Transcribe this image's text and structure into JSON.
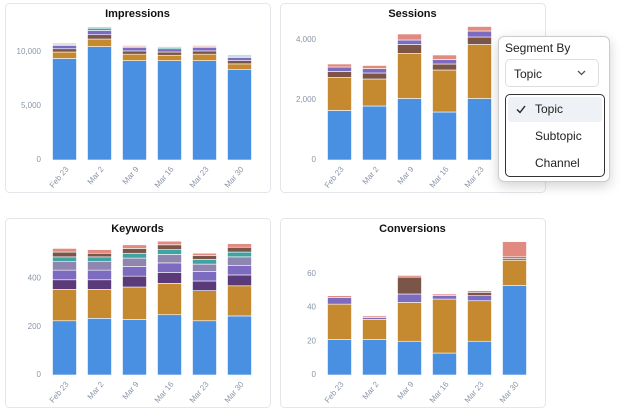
{
  "chart_data": [
    {
      "type": "bar",
      "stacked": true,
      "title": "Impressions",
      "categories": [
        "Feb 23",
        "Mar 2",
        "Mar 9",
        "Mar 16",
        "Mar 23",
        "Mar 30"
      ],
      "series": [
        {
          "color": "#4a90e2",
          "values": [
            9400,
            10500,
            9200,
            9200,
            9200,
            8400
          ]
        },
        {
          "color": "#c58a30",
          "values": [
            600,
            700,
            600,
            500,
            600,
            500
          ]
        },
        {
          "color": "#7a5548",
          "values": [
            300,
            400,
            300,
            300,
            300,
            300
          ]
        },
        {
          "color": "#7c6bbf",
          "values": [
            300,
            400,
            300,
            300,
            300,
            300
          ]
        },
        {
          "color": "#3fa3a3",
          "values": [
            100,
            200,
            100,
            100,
            100,
            100
          ]
        },
        {
          "color": "#e08a80",
          "values": [
            100,
            100,
            100,
            100,
            100,
            100
          ]
        }
      ],
      "ylim": [
        0,
        12500
      ],
      "yticks": [
        0,
        {
          "value": 5000,
          "label": "5,000"
        },
        {
          "value": 10000,
          "label": "10,000"
        }
      ]
    },
    {
      "type": "bar",
      "stacked": true,
      "title": "Sessions",
      "categories": [
        "Feb 23",
        "Mar 2",
        "Mar 9",
        "Mar 16",
        "Mar 23"
      ],
      "series": [
        {
          "color": "#4a90e2",
          "values": [
            1650,
            1800,
            2050,
            1600,
            2050
          ]
        },
        {
          "color": "#c58a30",
          "values": [
            1100,
            900,
            1500,
            1400,
            1800
          ]
        },
        {
          "color": "#7a5548",
          "values": [
            200,
            200,
            300,
            200,
            250
          ]
        },
        {
          "color": "#7c6bbf",
          "values": [
            150,
            150,
            150,
            150,
            200
          ]
        },
        {
          "color": "#e08a80",
          "values": [
            100,
            100,
            200,
            150,
            150
          ]
        }
      ],
      "ylim": [
        0,
        4500
      ],
      "yticks": [
        0,
        {
          "value": 2000,
          "label": "2,000"
        },
        {
          "value": 4000,
          "label": "4,000"
        }
      ]
    },
    {
      "type": "bar",
      "stacked": true,
      "title": "Keywords",
      "categories": [
        "Feb 23",
        "Mar 2",
        "Mar 9",
        "Mar 16",
        "Mar 23",
        "Mar 30"
      ],
      "series": [
        {
          "color": "#4a90e2",
          "values": [
            225,
            235,
            230,
            250,
            225,
            245
          ]
        },
        {
          "color": "#c58a30",
          "values": [
            130,
            120,
            135,
            130,
            125,
            125
          ]
        },
        {
          "color": "#5b3a7a",
          "values": [
            40,
            40,
            45,
            45,
            40,
            45
          ]
        },
        {
          "color": "#7c6bbf",
          "values": [
            40,
            40,
            40,
            40,
            40,
            40
          ]
        },
        {
          "color": "#8f86b0",
          "values": [
            35,
            35,
            35,
            35,
            30,
            35
          ]
        },
        {
          "color": "#3fa3a3",
          "values": [
            20,
            20,
            20,
            20,
            20,
            20
          ]
        },
        {
          "color": "#7a5548",
          "values": [
            20,
            15,
            20,
            20,
            15,
            20
          ]
        },
        {
          "color": "#e08a80",
          "values": [
            15,
            15,
            15,
            15,
            10,
            15
          ]
        }
      ],
      "ylim": [
        0,
        560
      ],
      "yticks": [
        0,
        200,
        400
      ]
    },
    {
      "type": "bar",
      "stacked": true,
      "title": "Conversions",
      "categories": [
        "Feb 23",
        "Mar 2",
        "Mar 9",
        "Mar 16",
        "Mar 23",
        "Mar 30"
      ],
      "series": [
        {
          "color": "#4a90e2",
          "values": [
            21,
            21,
            20,
            13,
            20,
            53
          ]
        },
        {
          "color": "#c58a30",
          "values": [
            21,
            12,
            23,
            32,
            24,
            15
          ]
        },
        {
          "color": "#7c6bbf",
          "values": [
            4,
            1,
            5,
            2,
            3,
            1
          ]
        },
        {
          "color": "#7a5548",
          "values": [
            0,
            0,
            10,
            0,
            2,
            1
          ]
        },
        {
          "color": "#e08a80",
          "values": [
            1,
            1,
            1,
            1,
            1,
            9
          ]
        }
      ],
      "ylim": [
        0,
        80
      ],
      "yticks": [
        0,
        20,
        40,
        60
      ]
    }
  ],
  "segment_menu": {
    "label": "Segment By",
    "selected": "Topic",
    "options": [
      "Topic",
      "Subtopic",
      "Channel"
    ]
  }
}
